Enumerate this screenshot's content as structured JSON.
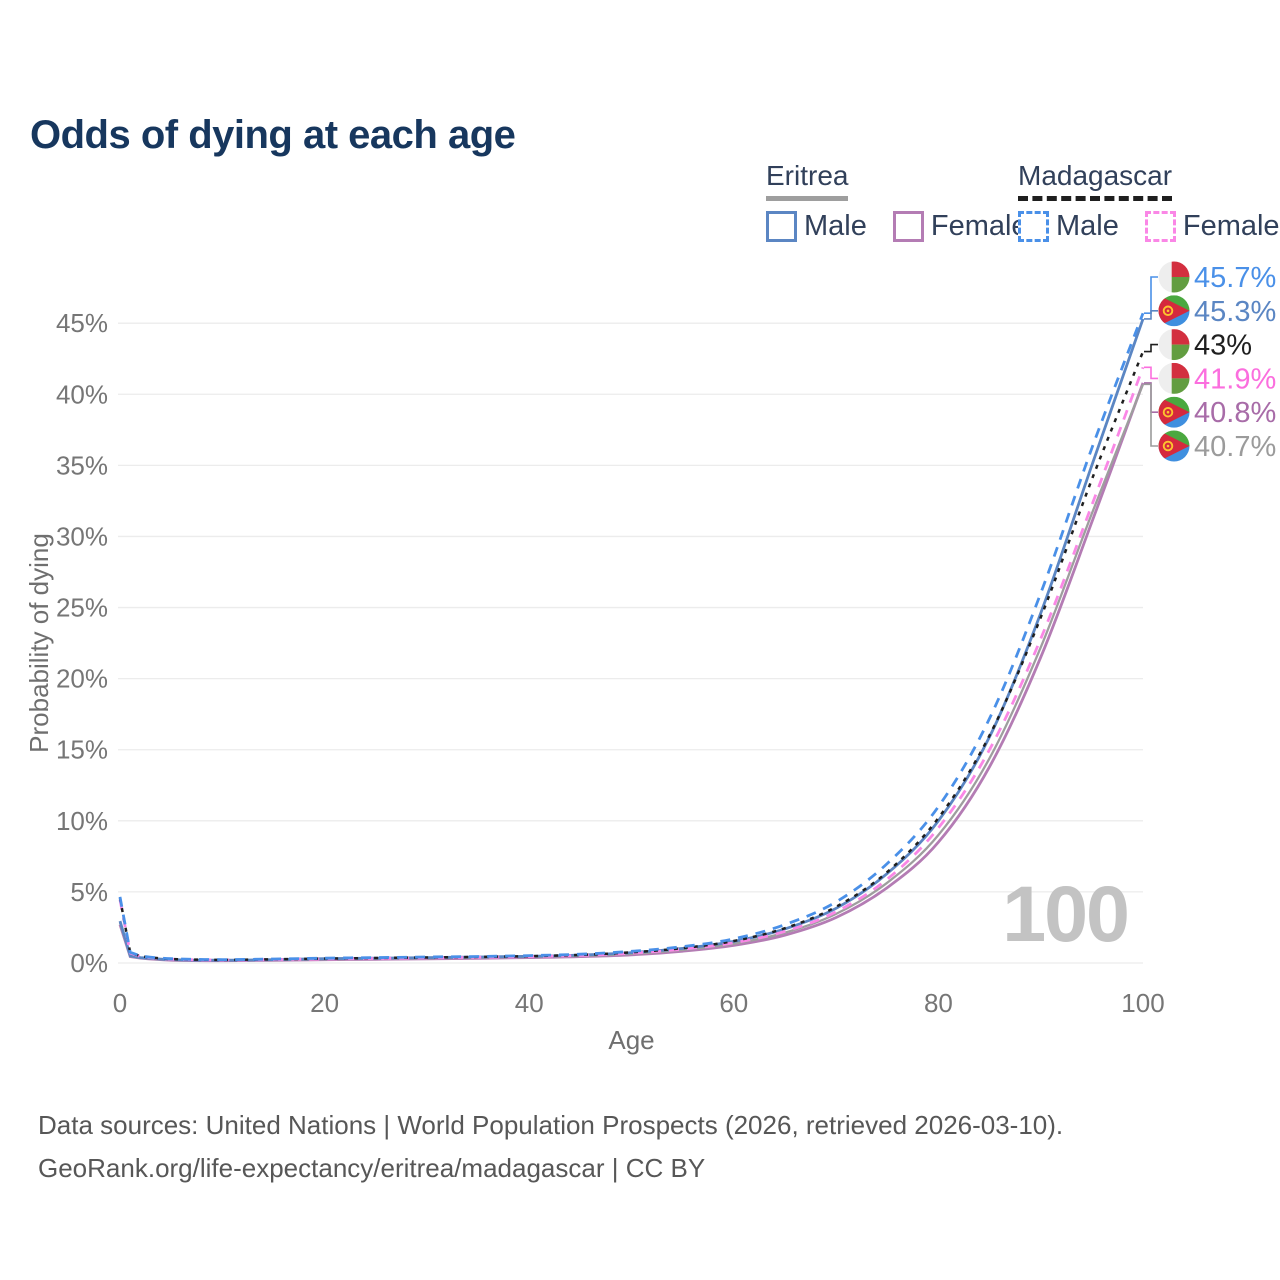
{
  "header": {
    "title": "Odds of dying at each age",
    "title_color": "#17375e"
  },
  "legend": {
    "text_color": "#31405a",
    "groups": [
      {
        "name": "Eritrea",
        "underline_style": "solid",
        "underline_color": "#9e9e9e",
        "items": [
          {
            "label": "Male",
            "box_color": "#5b86c3",
            "box_style": "solid"
          },
          {
            "label": "Female",
            "box_color": "#b47cb4",
            "box_style": "solid"
          }
        ]
      },
      {
        "name": "Madagascar",
        "underline_style": "dashed",
        "underline_color": "#1f1f1f",
        "items": [
          {
            "label": "Male",
            "box_color": "#4a90e8",
            "box_style": "dashed"
          },
          {
            "label": "Female",
            "box_color": "#fa87e6",
            "box_style": "dashed"
          }
        ]
      }
    ]
  },
  "chart_data": {
    "type": "line",
    "title": "Odds of dying at each age",
    "xlabel": "Age",
    "ylabel": "Probability of dying",
    "xlim": [
      0,
      100
    ],
    "ylim": [
      0,
      47.5
    ],
    "x_ticks": [
      0,
      20,
      40,
      60,
      80,
      100
    ],
    "y_ticks": [
      0,
      5,
      10,
      15,
      20,
      25,
      30,
      35,
      40,
      45
    ],
    "y_tick_suffix": "%",
    "grid": "horizontal-only",
    "grid_color": "#ececec",
    "tick_label_color": "#767676",
    "axis_title_color": "#6f6f6f",
    "legend_position": "top-right",
    "watermark": "100",
    "watermark_color": "#c3c3c3",
    "ages": [
      0,
      1,
      2,
      5,
      10,
      15,
      20,
      25,
      30,
      35,
      40,
      45,
      50,
      55,
      60,
      65,
      70,
      75,
      80,
      85,
      90,
      95,
      100
    ],
    "series": [
      {
        "name": "Eritrea Female",
        "country": "Eritrea",
        "sex": "Female",
        "style": "solid",
        "color": "#b47cb4",
        "width": 2.8,
        "dash": "",
        "values": [
          2.7,
          0.45,
          0.34,
          0.2,
          0.16,
          0.19,
          0.23,
          0.26,
          0.29,
          0.33,
          0.38,
          0.45,
          0.58,
          0.83,
          1.24,
          1.96,
          3.2,
          5.3,
          8.5,
          13.8,
          21.5,
          31.0,
          40.8
        ]
      },
      {
        "name": "Eritrea Both sexes",
        "country": "Eritrea",
        "sex": "Both",
        "style": "solid",
        "color": "#9e9e9e",
        "width": 2.3,
        "dash": "",
        "values": [
          2.85,
          0.48,
          0.36,
          0.22,
          0.18,
          0.21,
          0.26,
          0.3,
          0.33,
          0.37,
          0.42,
          0.5,
          0.65,
          0.92,
          1.36,
          2.14,
          3.45,
          5.65,
          9.0,
          14.4,
          22.2,
          31.6,
          40.7
        ]
      },
      {
        "name": "Eritrea Male",
        "country": "Eritrea",
        "sex": "Male",
        "style": "solid",
        "color": "#5b86c3",
        "width": 2.8,
        "dash": "",
        "values": [
          2.95,
          0.5,
          0.38,
          0.24,
          0.2,
          0.24,
          0.3,
          0.34,
          0.38,
          0.42,
          0.47,
          0.56,
          0.73,
          1.03,
          1.52,
          2.4,
          3.85,
          6.3,
          10.0,
          15.9,
          24.6,
          35.0,
          45.3
        ]
      },
      {
        "name": "Madagascar Female",
        "country": "Madagascar",
        "sex": "Female",
        "style": "dashed",
        "color": "#fa87e6",
        "width": 2.8,
        "dash": "10 8",
        "values": [
          4.45,
          0.7,
          0.46,
          0.27,
          0.21,
          0.24,
          0.28,
          0.32,
          0.36,
          0.4,
          0.45,
          0.53,
          0.69,
          0.97,
          1.42,
          2.22,
          3.6,
          5.9,
          9.5,
          15.0,
          22.8,
          32.2,
          41.9
        ]
      },
      {
        "name": "Madagascar Both sexes",
        "country": "Madagascar",
        "sex": "Both",
        "style": "dashed",
        "color": "#1f1f1f",
        "width": 2.5,
        "dash": "4 6",
        "values": [
          4.55,
          0.72,
          0.48,
          0.28,
          0.22,
          0.26,
          0.31,
          0.35,
          0.39,
          0.43,
          0.48,
          0.57,
          0.75,
          1.05,
          1.55,
          2.45,
          3.95,
          6.4,
          10.2,
          16.0,
          24.3,
          34.0,
          43.0
        ]
      },
      {
        "name": "Madagascar Male",
        "country": "Madagascar",
        "sex": "Male",
        "style": "dashed",
        "color": "#4a90e8",
        "width": 2.8,
        "dash": "10 8",
        "values": [
          4.65,
          0.75,
          0.5,
          0.3,
          0.24,
          0.28,
          0.34,
          0.38,
          0.42,
          0.46,
          0.52,
          0.62,
          0.82,
          1.15,
          1.7,
          2.7,
          4.3,
          7.0,
          11.0,
          17.2,
          26.0,
          36.2,
          45.7
        ]
      }
    ],
    "end_labels": [
      {
        "text": "45.7%",
        "value": 45.7,
        "color": "#4a90e8",
        "flag": "madagascar",
        "series": "Madagascar Male"
      },
      {
        "text": "45.3%",
        "value": 45.3,
        "color": "#5b86c3",
        "flag": "eritrea",
        "series": "Eritrea Male"
      },
      {
        "text": "43%",
        "value": 43.0,
        "color": "#1f1f1f",
        "flag": "madagascar",
        "series": "Madagascar Both sexes"
      },
      {
        "text": "41.9%",
        "value": 41.9,
        "color": "#fb6ede",
        "flag": "madagascar",
        "series": "Madagascar Female"
      },
      {
        "text": "40.8%",
        "value": 40.8,
        "color": "#a86ca8",
        "flag": "eritrea",
        "series": "Eritrea Female"
      },
      {
        "text": "40.7%",
        "value": 40.7,
        "color": "#9b9b9b",
        "flag": "eritrea",
        "series": "Eritrea Both sexes"
      }
    ],
    "flag_colors": {
      "eritrea": {
        "green": "#4aa83f",
        "blue": "#3f8fdf",
        "red": "#d5293d",
        "gold": "#fcc52e"
      },
      "madagascar": {
        "white": "#eeeeee",
        "red": "#d32f3f",
        "green": "#629d40"
      }
    }
  },
  "footer": {
    "line1": "Data sources: United Nations | World Population Prospects (2026, retrieved 2026-03-10).",
    "line2": "GeoRank.org/life-expectancy/eritrea/madagascar | CC BY",
    "color": "#575757"
  }
}
